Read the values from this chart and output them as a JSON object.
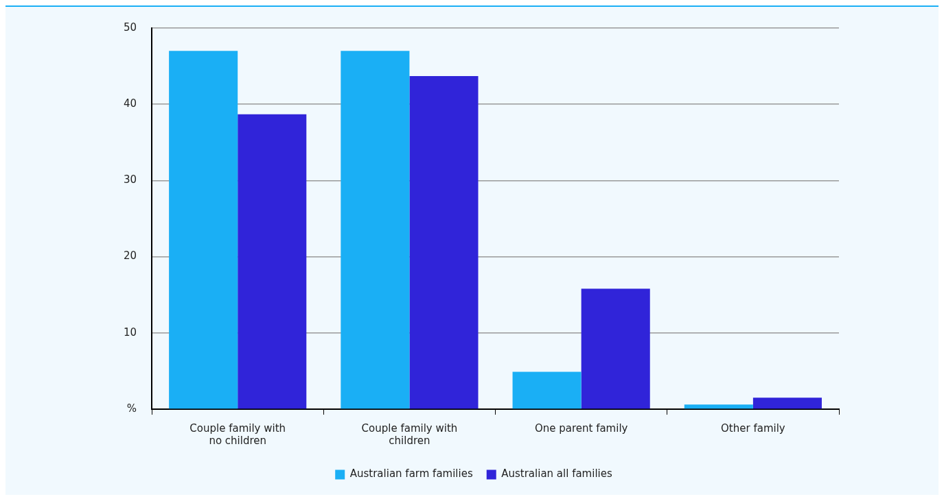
{
  "chart_data": {
    "type": "bar",
    "categories": [
      "Couple family with no children",
      "Couple family with children",
      "One parent family",
      "Other family"
    ],
    "series": [
      {
        "name": "Australian farm families",
        "color": "#1aaff5",
        "values": [
          47,
          47,
          4.9,
          0.6
        ]
      },
      {
        "name": "Australian all families",
        "color": "#3024d9",
        "values": [
          38.7,
          43.7,
          15.8,
          1.5
        ]
      }
    ],
    "ylim": [
      0,
      50
    ],
    "yticks": [
      {
        "value": 0,
        "label": "%"
      },
      10,
      20,
      30,
      40,
      50
    ],
    "grid": "y",
    "legend": "bottom"
  }
}
